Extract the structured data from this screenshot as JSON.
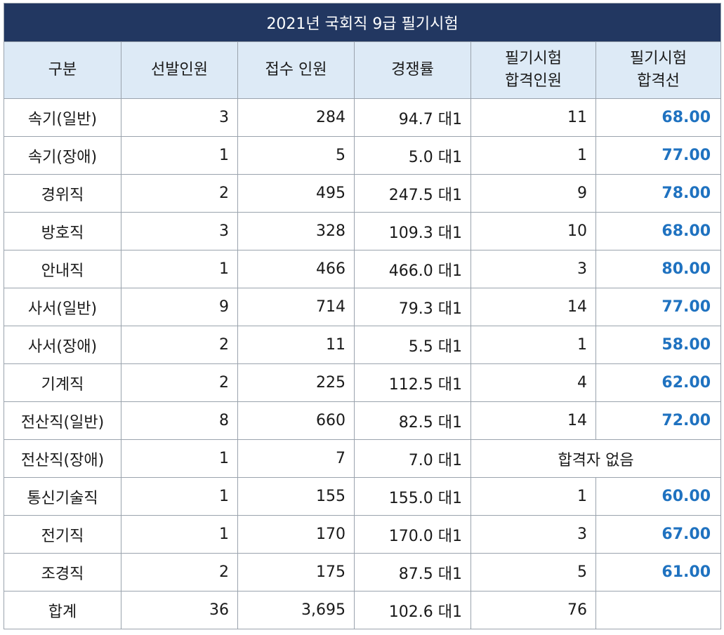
{
  "title": "2021년 국회직 9급 필기시험",
  "headers": {
    "category": "구분",
    "selected": "선발인원",
    "applicants": "접수 인원",
    "ratio": "경쟁률",
    "passed_line1": "필기시험",
    "passed_line2": "합격인원",
    "cutoff_line1": "필기시험",
    "cutoff_line2": "합격선"
  },
  "rows": [
    {
      "category": "속기(일반)",
      "selected": "3",
      "applicants": "284",
      "ratio": "94.7 대1",
      "passed": "11",
      "cutoff": "68.00"
    },
    {
      "category": "속기(장애)",
      "selected": "1",
      "applicants": "5",
      "ratio": "5.0 대1",
      "passed": "1",
      "cutoff": "77.00"
    },
    {
      "category": "경위직",
      "selected": "2",
      "applicants": "495",
      "ratio": "247.5 대1",
      "passed": "9",
      "cutoff": "78.00"
    },
    {
      "category": "방호직",
      "selected": "3",
      "applicants": "328",
      "ratio": "109.3 대1",
      "passed": "10",
      "cutoff": "68.00"
    },
    {
      "category": "안내직",
      "selected": "1",
      "applicants": "466",
      "ratio": "466.0 대1",
      "passed": "3",
      "cutoff": "80.00"
    },
    {
      "category": "사서(일반)",
      "selected": "9",
      "applicants": "714",
      "ratio": "79.3 대1",
      "passed": "14",
      "cutoff": "77.00"
    },
    {
      "category": "사서(장애)",
      "selected": "2",
      "applicants": "11",
      "ratio": "5.5 대1",
      "passed": "1",
      "cutoff": "58.00"
    },
    {
      "category": "기계직",
      "selected": "2",
      "applicants": "225",
      "ratio": "112.5 대1",
      "passed": "4",
      "cutoff": "62.00"
    },
    {
      "category": "전산직(일반)",
      "selected": "8",
      "applicants": "660",
      "ratio": "82.5 대1",
      "passed": "14",
      "cutoff": "72.00"
    },
    {
      "category": "전산직(장애)",
      "selected": "1",
      "applicants": "7",
      "ratio": "7.0 대1",
      "no_pass": "합격자 없음"
    },
    {
      "category": "통신기술직",
      "selected": "1",
      "applicants": "155",
      "ratio": "155.0 대1",
      "passed": "1",
      "cutoff": "60.00"
    },
    {
      "category": "전기직",
      "selected": "1",
      "applicants": "170",
      "ratio": "170.0 대1",
      "passed": "3",
      "cutoff": "67.00"
    },
    {
      "category": "조경직",
      "selected": "2",
      "applicants": "175",
      "ratio": "87.5 대1",
      "passed": "5",
      "cutoff": "61.00"
    },
    {
      "category": "합계",
      "selected": "36",
      "applicants": "3,695",
      "ratio": "102.6 대1",
      "passed": "76",
      "cutoff": ""
    }
  ],
  "colors": {
    "title_bg": "#223761",
    "header_bg": "#ddeaf6",
    "cutoff_text": "#1f72c0"
  }
}
